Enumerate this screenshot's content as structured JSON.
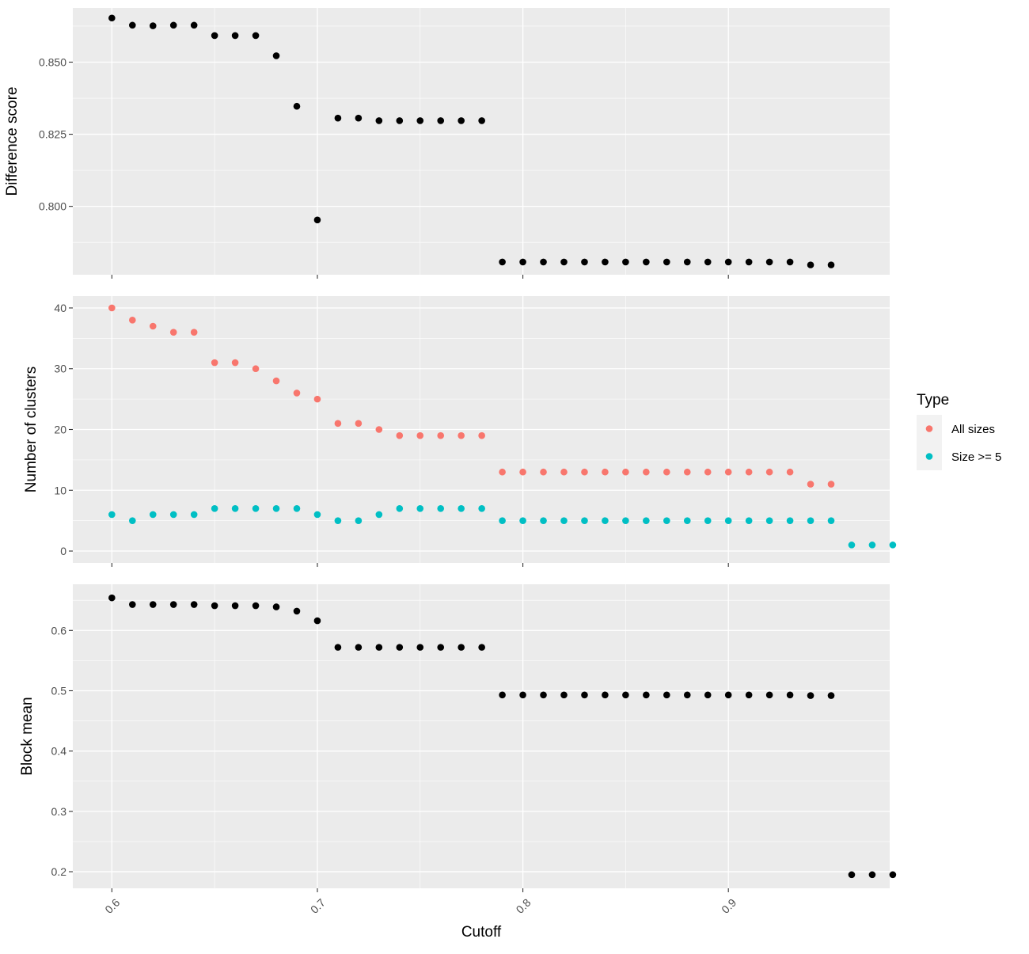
{
  "chart_data": {
    "type": "scatter",
    "xlabel": "Cutoff",
    "x_ticks": [
      "0.6",
      "0.7",
      "0.8",
      "0.9"
    ],
    "xlim": [
      0.581,
      0.9785
    ],
    "legend": {
      "title": "Type",
      "placement": "right",
      "entries": [
        {
          "label": "All sizes",
          "color": "#F8766D"
        },
        {
          "label": "Size >= 5",
          "color": "#00BFC4"
        }
      ]
    },
    "panels": [
      {
        "ylabel": "Difference score",
        "ylim": [
          0.7763,
          0.8688
        ],
        "y_ticks": [
          "0.800",
          "0.825",
          "0.850"
        ],
        "series": [
          {
            "color": "#000000",
            "x": [
              0.6,
              0.61,
              0.62,
              0.63,
              0.64,
              0.65,
              0.66,
              0.67,
              0.68,
              0.69,
              0.7,
              0.71,
              0.72,
              0.73,
              0.74,
              0.75,
              0.76,
              0.77,
              0.78,
              0.79,
              0.8,
              0.81,
              0.82,
              0.83,
              0.84,
              0.85,
              0.86,
              0.87,
              0.88,
              0.89,
              0.9,
              0.91,
              0.92,
              0.93,
              0.94,
              0.95
            ],
            "y": [
              0.8653,
              0.8628,
              0.8626,
              0.8628,
              0.8628,
              0.8592,
              0.8592,
              0.8592,
              0.8522,
              0.8347,
              0.7953,
              0.8306,
              0.8306,
              0.8297,
              0.8297,
              0.8297,
              0.8297,
              0.8297,
              0.8297,
              0.7807,
              0.7807,
              0.7807,
              0.7807,
              0.7807,
              0.7807,
              0.7807,
              0.7807,
              0.7807,
              0.7807,
              0.7807,
              0.7807,
              0.7807,
              0.7807,
              0.7807,
              0.7797,
              0.7797
            ]
          }
        ]
      },
      {
        "ylabel": "Number of clusters",
        "ylim": [
          -1.95,
          41.95
        ],
        "y_ticks": [
          "0",
          "10",
          "20",
          "30",
          "40"
        ],
        "series": [
          {
            "name": "All sizes",
            "color": "#F8766D",
            "x": [
              0.6,
              0.61,
              0.62,
              0.63,
              0.64,
              0.65,
              0.66,
              0.67,
              0.68,
              0.69,
              0.7,
              0.71,
              0.72,
              0.73,
              0.74,
              0.75,
              0.76,
              0.77,
              0.78,
              0.79,
              0.8,
              0.81,
              0.82,
              0.83,
              0.84,
              0.85,
              0.86,
              0.87,
              0.88,
              0.89,
              0.9,
              0.91,
              0.92,
              0.93,
              0.94,
              0.95
            ],
            "y": [
              40,
              38,
              37,
              36,
              36,
              31,
              31,
              30,
              28,
              26,
              25,
              21,
              21,
              20,
              19,
              19,
              19,
              19,
              19,
              13,
              13,
              13,
              13,
              13,
              13,
              13,
              13,
              13,
              13,
              13,
              13,
              13,
              13,
              13,
              11,
              11
            ]
          },
          {
            "name": "Size >= 5",
            "color": "#00BFC4",
            "x": [
              0.6,
              0.61,
              0.62,
              0.63,
              0.64,
              0.65,
              0.66,
              0.67,
              0.68,
              0.69,
              0.7,
              0.71,
              0.72,
              0.73,
              0.74,
              0.75,
              0.76,
              0.77,
              0.78,
              0.79,
              0.8,
              0.81,
              0.82,
              0.83,
              0.84,
              0.85,
              0.86,
              0.87,
              0.88,
              0.89,
              0.9,
              0.91,
              0.92,
              0.93,
              0.94,
              0.95,
              0.96,
              0.97,
              0.98
            ],
            "y": [
              6,
              5,
              6,
              6,
              6,
              7,
              7,
              7,
              7,
              7,
              6,
              5,
              5,
              6,
              7,
              7,
              7,
              7,
              7,
              5,
              5,
              5,
              5,
              5,
              5,
              5,
              5,
              5,
              5,
              5,
              5,
              5,
              5,
              5,
              5,
              5,
              1,
              1,
              1
            ]
          }
        ]
      },
      {
        "ylabel": "Block mean",
        "ylim": [
          0.1725,
          0.6765
        ],
        "y_ticks": [
          "0.2",
          "0.3",
          "0.4",
          "0.5",
          "0.6"
        ],
        "series": [
          {
            "color": "#000000",
            "x": [
              0.6,
              0.61,
              0.62,
              0.63,
              0.64,
              0.65,
              0.66,
              0.67,
              0.68,
              0.69,
              0.7,
              0.71,
              0.72,
              0.73,
              0.74,
              0.75,
              0.76,
              0.77,
              0.78,
              0.79,
              0.8,
              0.81,
              0.82,
              0.83,
              0.84,
              0.85,
              0.86,
              0.87,
              0.88,
              0.89,
              0.9,
              0.91,
              0.92,
              0.93,
              0.94,
              0.95,
              0.96,
              0.97,
              0.98
            ],
            "y": [
              0.654,
              0.643,
              0.643,
              0.643,
              0.643,
              0.641,
              0.641,
              0.641,
              0.639,
              0.632,
              0.616,
              0.572,
              0.572,
              0.572,
              0.572,
              0.572,
              0.572,
              0.572,
              0.572,
              0.493,
              0.493,
              0.493,
              0.493,
              0.493,
              0.493,
              0.493,
              0.493,
              0.493,
              0.493,
              0.493,
              0.493,
              0.493,
              0.493,
              0.493,
              0.492,
              0.492,
              0.195,
              0.195,
              0.195
            ]
          }
        ]
      }
    ]
  }
}
